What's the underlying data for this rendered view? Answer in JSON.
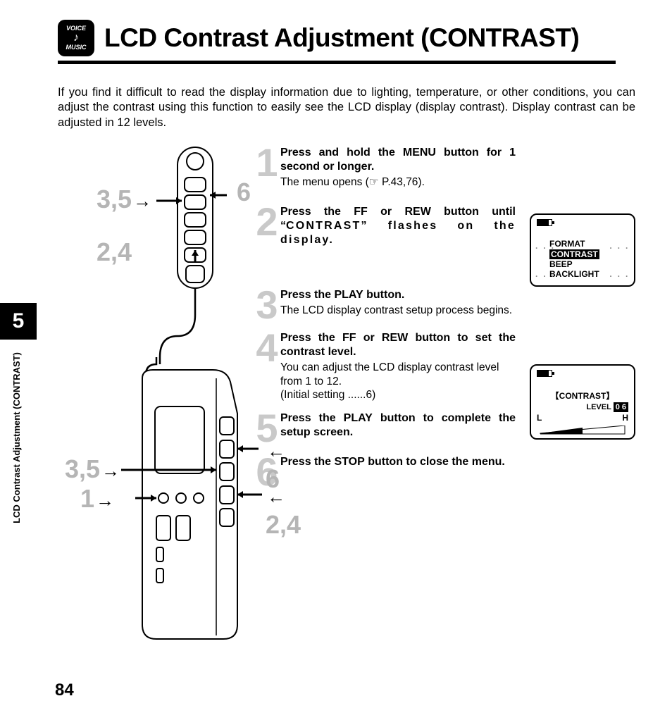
{
  "logo": {
    "top": "VOICE",
    "glyph": "♪",
    "bottom": "MUSIC"
  },
  "title": "LCD Contrast Adjustment (CONTRAST)",
  "intro": "If you find it difficult to read the display information due to lighting, temperature, or other conditions, you can adjust the contrast using this function to easily see the LCD display (display contrast). Display contrast can be adjusted in 12 levels.",
  "callouts": {
    "remote_35": "3,5",
    "remote_24": "2,4",
    "remote_6": "6",
    "device_35": "3,5",
    "device_1": "1",
    "device_6": "6",
    "device_24": "2,4"
  },
  "steps": [
    {
      "n": "1",
      "head_pre": "Press and hold the ",
      "head_kw": "MENU",
      "head_post": " button for 1 second or longer.",
      "sub": "The menu opens (☞ P.43,76)."
    },
    {
      "n": "2",
      "head_pre": "Press the ",
      "head_kw": "FF",
      "head_mid": " or ",
      "head_kw2": "REW",
      "head_post": " button until “",
      "head_kw3": "CONTRAST",
      "head_post2": "” flashes on the display.",
      "spaced": true
    },
    {
      "n": "3",
      "head_pre": "Press the ",
      "head_kw": "PLAY",
      "head_post": " button.",
      "sub": "The LCD display contrast setup process begins."
    },
    {
      "n": "4",
      "head_pre": "Press the ",
      "head_kw": "FF",
      "head_mid": " or ",
      "head_kw2": "REW",
      "head_post": " button to set the contrast level.",
      "sub": "You can adjust the LCD display contrast level from 1 to 12.\n(Initial setting ......6)"
    },
    {
      "n": "5",
      "head_pre": "Press the ",
      "head_kw": "PLAY",
      "head_post": " button to complete the setup screen."
    },
    {
      "n": "6",
      "head_pre": "Press the ",
      "head_kw": "STOP",
      "head_post": " button to close the menu."
    }
  ],
  "lcd1": {
    "items": [
      "FORMAT",
      "CONTRAST",
      "BEEP",
      "BACKLIGHT"
    ],
    "selected_index": 1
  },
  "lcd2": {
    "label_br": "【CONTRAST】",
    "level_label": "LEVEL",
    "level_value": "0 6",
    "low": "L",
    "high": "H"
  },
  "chapter_tab": "5",
  "vertical_title": "LCD Contrast Adjustment (CONTRAST)",
  "page_number": "84",
  "colors": {
    "step_num": "#c9c9c9",
    "callout": "#b5b5b5",
    "text": "#000000",
    "bg": "#ffffff"
  }
}
